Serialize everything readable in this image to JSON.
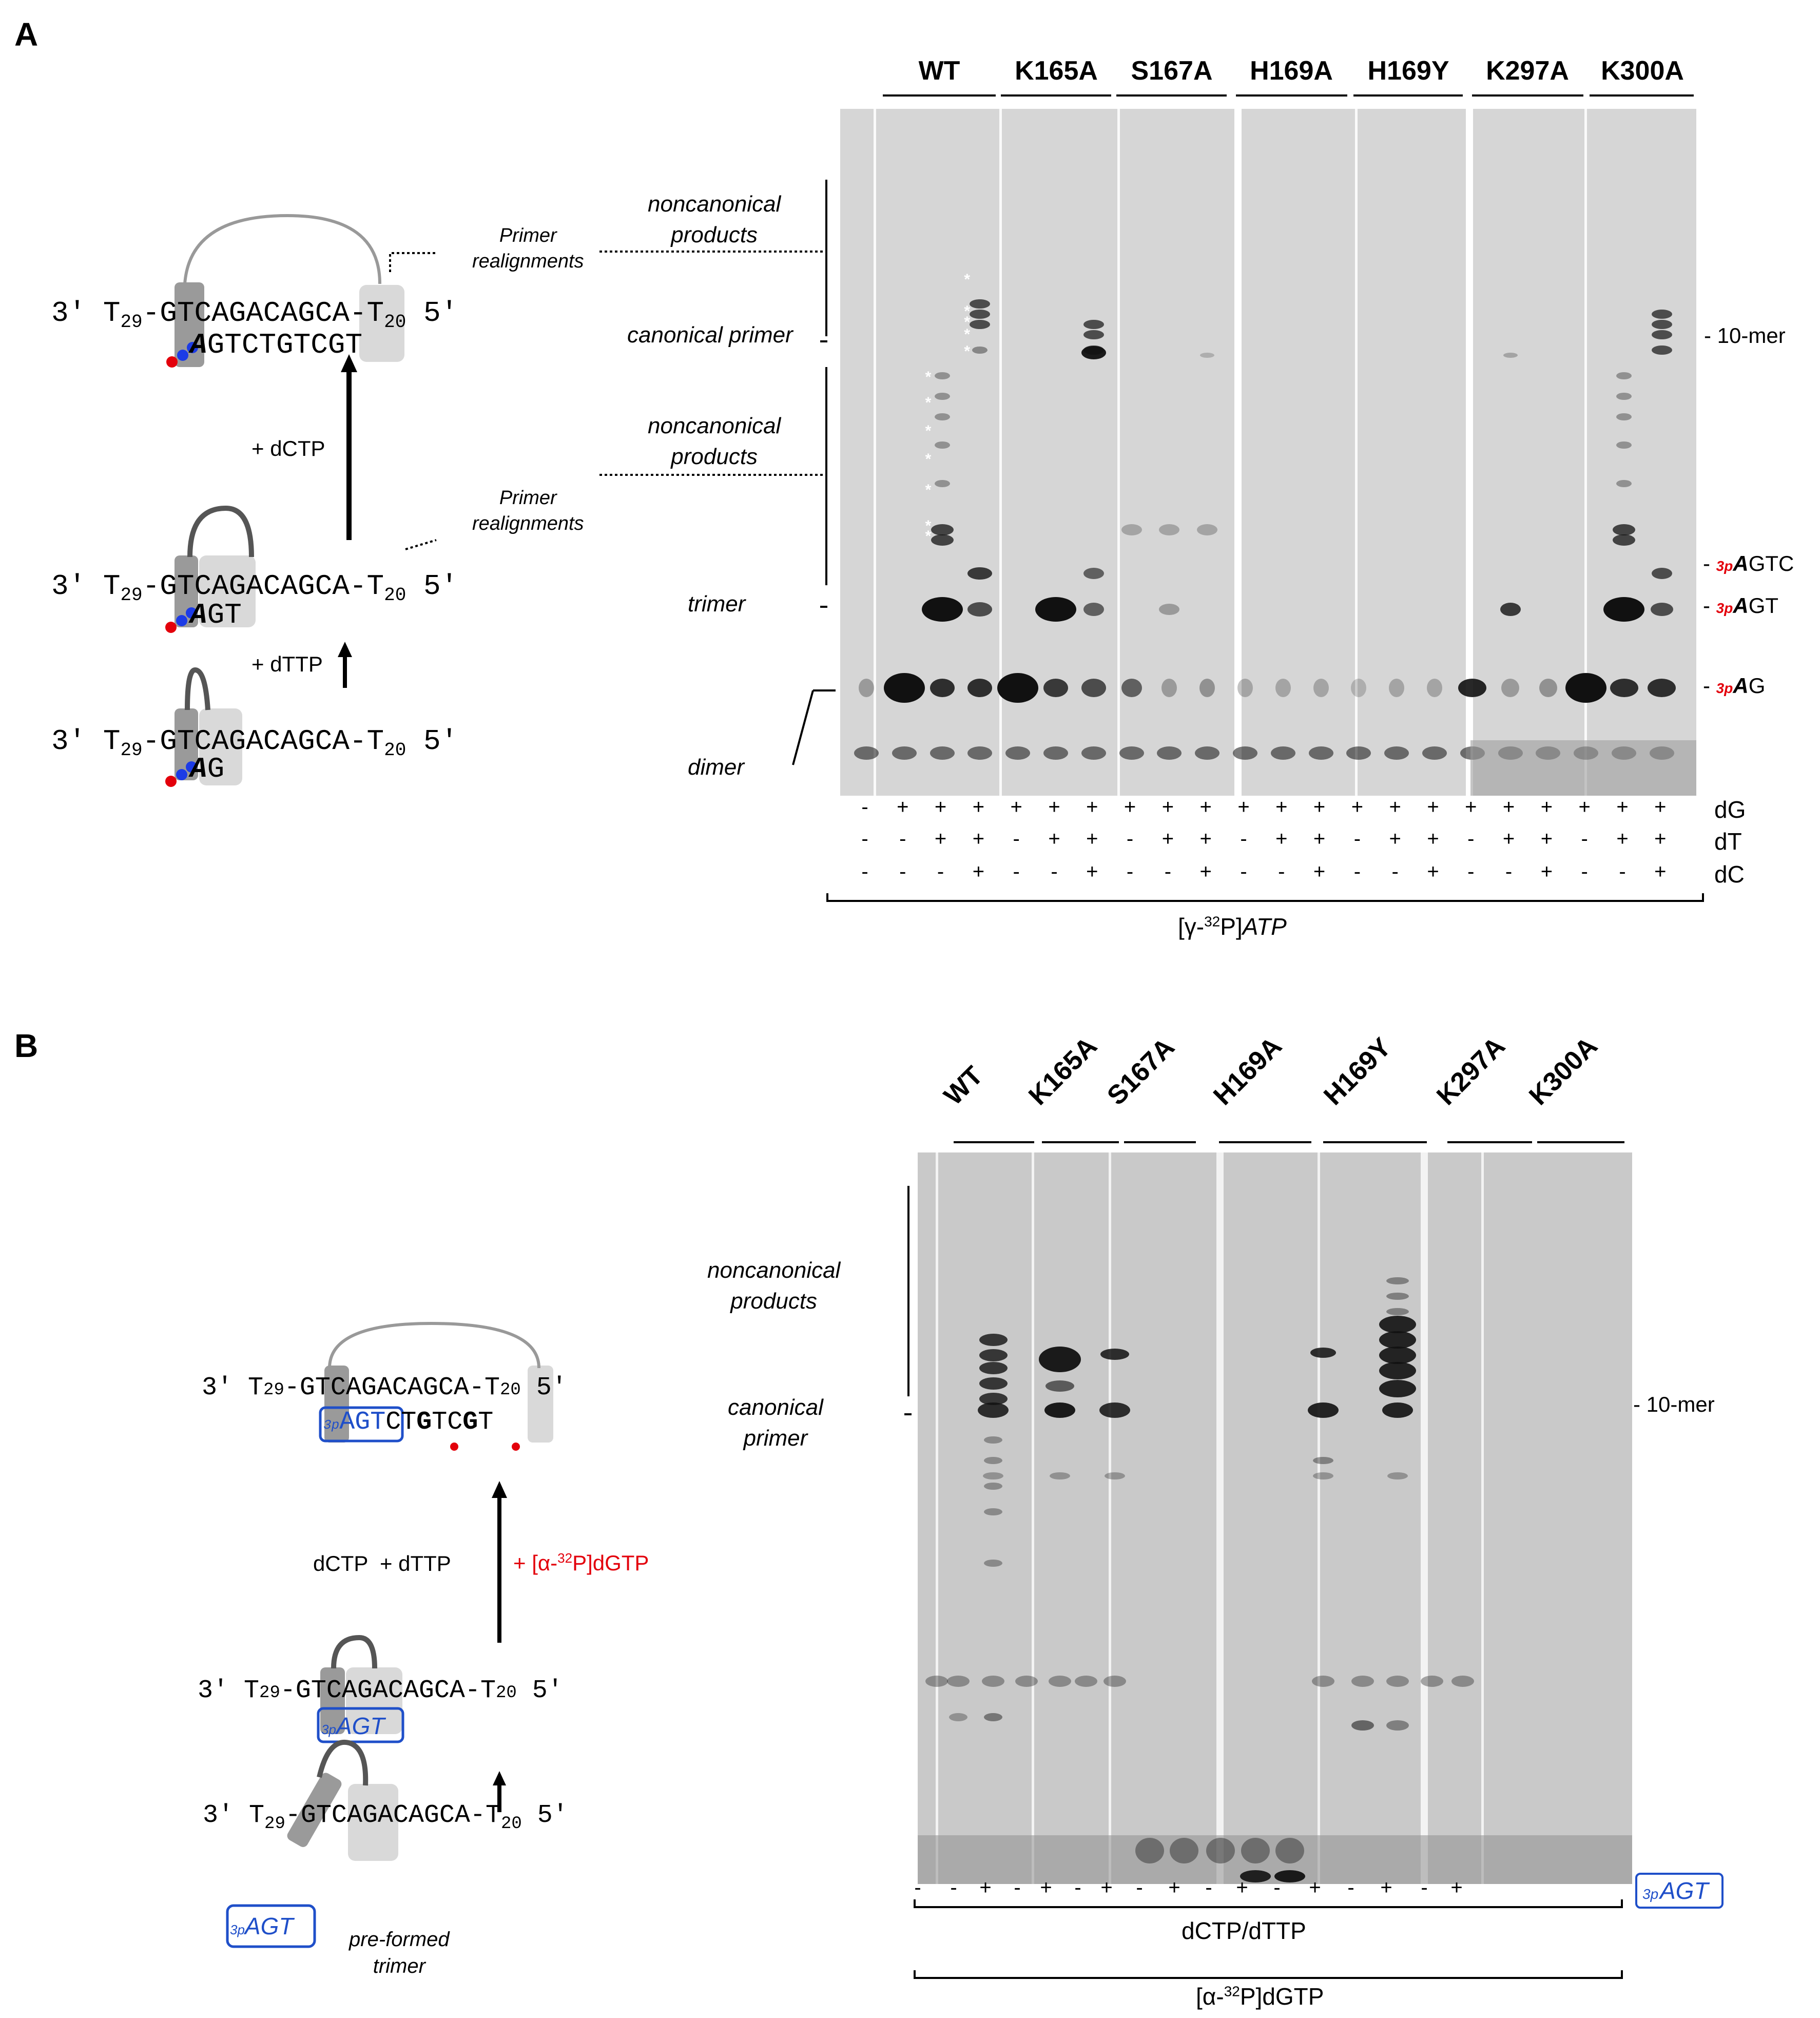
{
  "panelA": {
    "letter": "A",
    "mutants": [
      "WT",
      "K165A",
      "S167A",
      "H169A",
      "H169Y",
      "K297A",
      "K300A"
    ],
    "left_labels": {
      "noncanonical_top": "noncanonical\nproducts",
      "canonical_primer": "canonical primer",
      "noncanonical_mid": "noncanonical\nproducts",
      "trimer": "trimer",
      "dimer": "dimer"
    },
    "realign_1": "Primer\nrealignments",
    "realign_2": "Primer\nrealignments",
    "right_labels": {
      "tenmer": "- 10-mer",
      "agtc_prefix": "3p",
      "agtc_bold": "A",
      "agtc_rest": "GTC",
      "agt_prefix": "3p",
      "agt_bold": "A",
      "agt_rest": "GT",
      "ag_prefix": "3p",
      "ag_bold": "A",
      "ag_rest": "G"
    },
    "rows": {
      "dG_label": "dG",
      "dT_label": "dT",
      "dC_label": "dC",
      "dG": [
        "-",
        "+",
        "+",
        "+",
        "+",
        "+",
        "+",
        "+",
        "+",
        "+",
        "+",
        "+",
        "+",
        "+",
        "+",
        "+",
        "+",
        "+",
        "+",
        "+",
        "+",
        "+"
      ],
      "dT": [
        "-",
        "-",
        "+",
        "+",
        "-",
        "+",
        "+",
        "-",
        "+",
        "+",
        "-",
        "+",
        "+",
        "-",
        "+",
        "+",
        "-",
        "+",
        "+",
        "-",
        "+",
        "+"
      ],
      "dC": [
        "-",
        "-",
        "-",
        "+",
        "-",
        "-",
        "+",
        "-",
        "-",
        "+",
        "-",
        "-",
        "+",
        "-",
        "-",
        "+",
        "-",
        "-",
        "+",
        "-",
        "-",
        "+"
      ]
    },
    "bracket_label": {
      "pre": "[γ-",
      "sup": "32",
      "post": "P]",
      "ital": "ATP"
    },
    "scheme": {
      "prime3": "3′",
      "prime5": "5′",
      "t29": "T",
      "t29_sub": "29",
      "t20": "T",
      "t20_sub": "20",
      "template": "-GTCAGACAGCA-",
      "primer_top_bold": "A",
      "primer_top": "GTCTGTCGT",
      "primer_mid_bold": "A",
      "primer_mid": "GT",
      "primer_bot_bold": "A",
      "primer_bot": "G",
      "step1": "+ dTTP",
      "step2": "+ dCTP"
    }
  },
  "panelB": {
    "letter": "B",
    "mutants": [
      "WT",
      "K165A",
      "S167A",
      "H169A",
      "H169Y",
      "K297A",
      "K300A"
    ],
    "left_labels": {
      "noncanonical": "noncanonical\nproducts",
      "canonical": "canonical\nprimer"
    },
    "tenmer": "- 10-mer",
    "signs": [
      "-",
      "-",
      "+",
      "-",
      "+",
      "-",
      "+",
      "-",
      "+",
      "-",
      "+",
      "-",
      "+",
      "-",
      "+",
      "-",
      "+"
    ],
    "agt_box": {
      "prefix": "3p",
      "text": "AGT"
    },
    "bracket1": "dCTP/dTTP",
    "bracket2": {
      "pre": "[α-",
      "sup": "32",
      "post": "P]dGTP"
    },
    "scheme": {
      "prime3": "3′",
      "prime5": "5′",
      "t29": "T",
      "t29_sub": "29",
      "t20": "T",
      "t20_sub": "20",
      "template_top": "-GTCAGACAGCA-",
      "primer_box_prefix": "3p",
      "primer_box": "AGT",
      "primer_rest_1": "CT",
      "primer_g1": "G",
      "primer_rest_2": "TC",
      "primer_g2": "G",
      "primer_rest_3": "T",
      "step_text": "dCTP  + dTTP",
      "step_red": {
        "pre": "+ [α-",
        "sup": "32",
        "post": "P]dGTP"
      },
      "preformed": "pre-formed\ntrimer"
    }
  }
}
